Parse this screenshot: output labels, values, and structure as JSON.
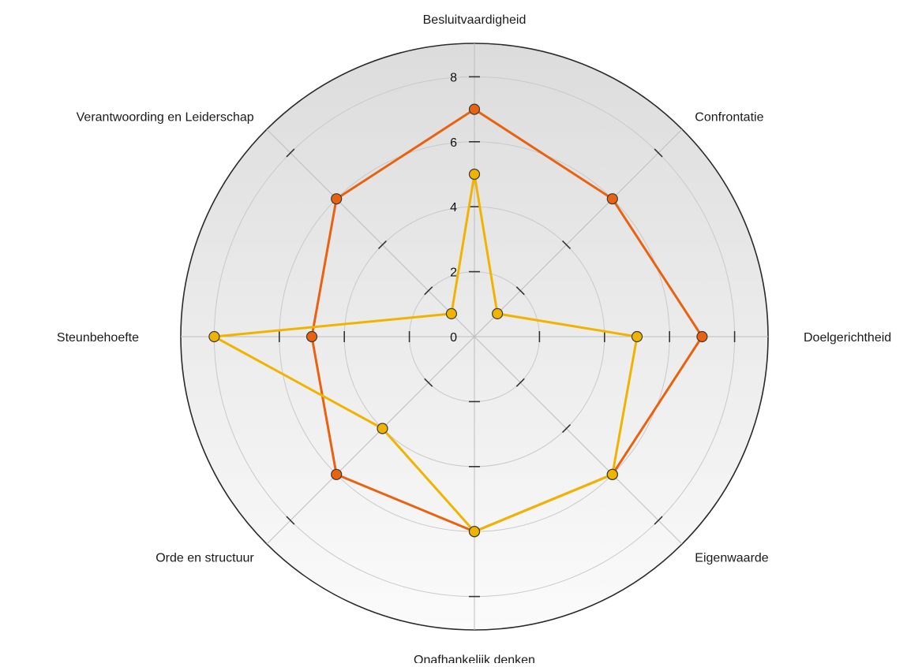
{
  "chart_data": {
    "type": "radar",
    "axes": [
      "Besluitvaardigheid",
      "Confrontatie",
      "Doelgerichtheid",
      "Eigenwaarde",
      "Onafhankelijk denken",
      "Orde en structuur",
      "Steunbehoefte",
      "Verantwoording en Leiderschap"
    ],
    "r_ticks": [
      "0",
      "2",
      "4",
      "6",
      "8"
    ],
    "r_range": [
      0,
      9
    ],
    "grid": true,
    "legend": "none",
    "series": [
      {
        "color": "#e8620f",
        "values": [
          7,
          6,
          7,
          6,
          6,
          6,
          5,
          6
        ]
      },
      {
        "color": "#f0b400",
        "values": [
          5,
          1,
          5,
          6,
          6,
          4,
          8,
          1
        ]
      }
    ]
  }
}
